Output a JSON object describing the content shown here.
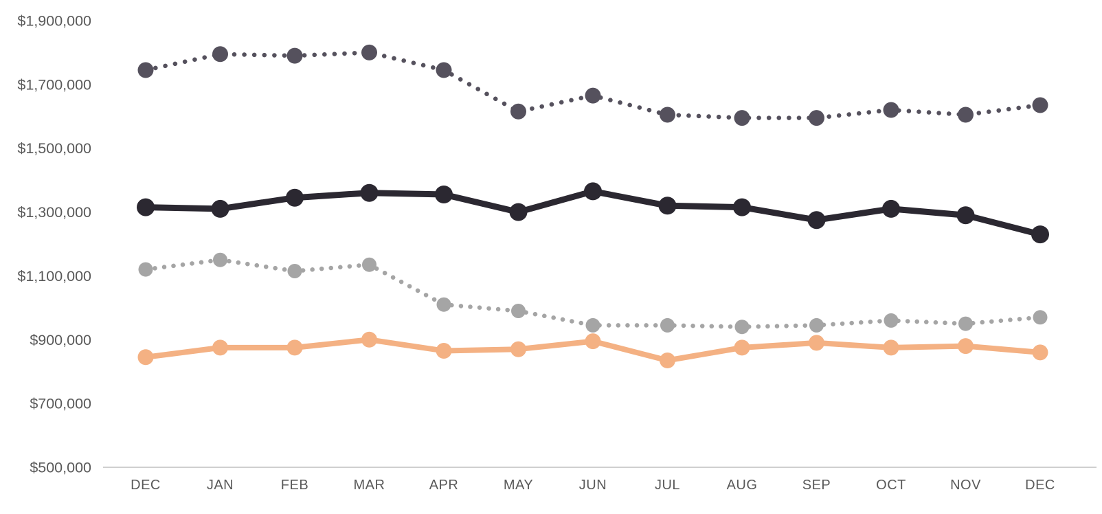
{
  "chart_data": {
    "type": "line",
    "title": "",
    "xlabel": "",
    "ylabel": "",
    "grid": false,
    "legend": "none",
    "background_color": "#ffffff",
    "axis_line_color": "#cfcfcf",
    "label_color": "#595959",
    "categories": [
      "DEC",
      "JAN",
      "FEB",
      "MAR",
      "APR",
      "MAY",
      "JUN",
      "JUL",
      "AUG",
      "SEP",
      "OCT",
      "NOV",
      "DEC"
    ],
    "y_axis": {
      "min": 500000,
      "max": 1900000,
      "step": 200000,
      "tick_labels": [
        "$500,000",
        "$700,000",
        "$900,000",
        "$1,100,000",
        "$1,300,000",
        "$1,500,000",
        "$1,700,000",
        "$1,900,000"
      ]
    },
    "series": [
      {
        "name": "dark-slate-dotted",
        "line_style": "dotted",
        "color": "#55515D",
        "values": [
          1745000,
          1795000,
          1790000,
          1800000,
          1745000,
          1615000,
          1665000,
          1605000,
          1595000,
          1595000,
          1620000,
          1605000,
          1635000
        ]
      },
      {
        "name": "black-solid",
        "line_style": "solid",
        "color": "#2B2831",
        "values": [
          1315000,
          1310000,
          1345000,
          1360000,
          1355000,
          1300000,
          1365000,
          1320000,
          1315000,
          1275000,
          1310000,
          1290000,
          1230000
        ]
      },
      {
        "name": "gray-dotted",
        "line_style": "dotted",
        "color": "#A5A5A5",
        "values": [
          1120000,
          1150000,
          1115000,
          1135000,
          1010000,
          990000,
          945000,
          945000,
          940000,
          945000,
          960000,
          950000,
          970000
        ]
      },
      {
        "name": "peach-solid",
        "line_style": "solid",
        "color": "#F4B183",
        "values": [
          845000,
          875000,
          875000,
          900000,
          865000,
          870000,
          895000,
          835000,
          875000,
          890000,
          875000,
          880000,
          860000
        ]
      }
    ]
  }
}
